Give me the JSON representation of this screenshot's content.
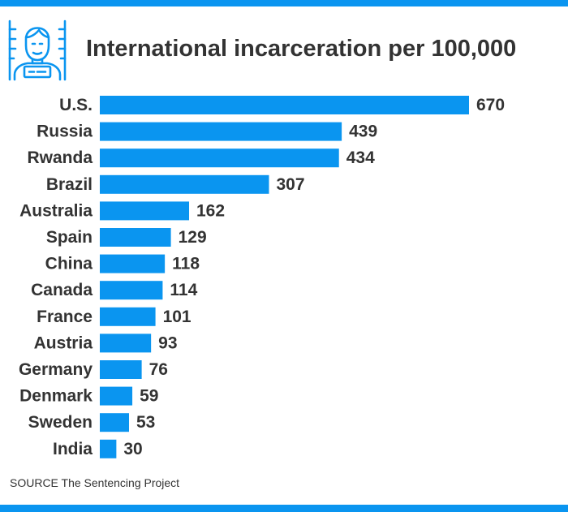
{
  "colors": {
    "accent": "#0a95f0",
    "text": "#333333",
    "background": "#ffffff"
  },
  "header": {
    "icon": "prisoner-icon"
  },
  "chart_data": {
    "type": "bar",
    "orientation": "horizontal",
    "title": "International incarceration per 100,000",
    "xlabel": "",
    "ylabel": "",
    "xlim": [
      0,
      670
    ],
    "grid": false,
    "legend": "none",
    "categories": [
      "U.S.",
      "Russia",
      "Rwanda",
      "Brazil",
      "Australia",
      "Spain",
      "China",
      "Canada",
      "France",
      "Austria",
      "Germany",
      "Denmark",
      "Sweden",
      "India"
    ],
    "values": [
      670,
      439,
      434,
      307,
      162,
      129,
      118,
      114,
      101,
      93,
      76,
      59,
      53,
      30
    ],
    "value_labels": [
      "670",
      "439",
      "434",
      "307",
      "162",
      "129",
      "118",
      "114",
      "101",
      "93",
      "76",
      "59",
      "53",
      "30"
    ]
  },
  "footer": {
    "source": "SOURCE The Sentencing Project"
  }
}
